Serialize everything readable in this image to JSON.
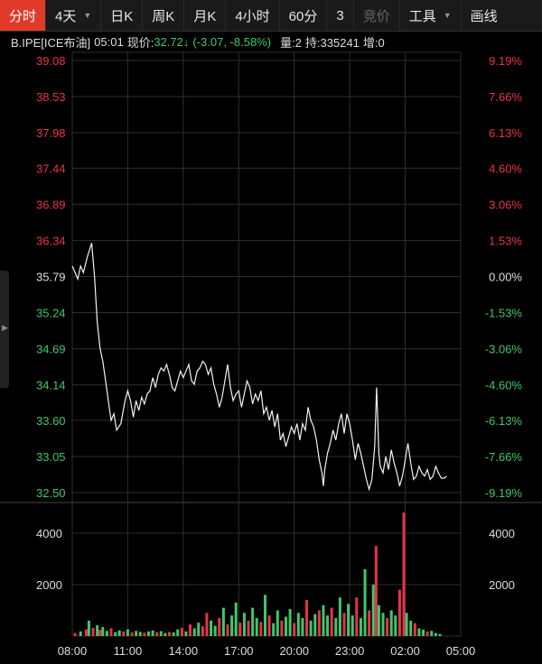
{
  "toolbar": {
    "items": [
      {
        "label": "分时",
        "active": true
      },
      {
        "label": "4天",
        "dropdown": true
      },
      {
        "label": "日K"
      },
      {
        "label": "周K"
      },
      {
        "label": "月K"
      },
      {
        "label": "4小时"
      },
      {
        "label": "60分"
      },
      {
        "label": "3"
      },
      {
        "label": "竞价",
        "disabled": true
      },
      {
        "label": "工具",
        "dropdown": true
      },
      {
        "label": "画线"
      }
    ]
  },
  "info": {
    "symbol": "B.IPE[ICE布油]",
    "time": "05:01",
    "price_label": "现价:",
    "price": "32.72",
    "change": "(-3.07, -8.58%)",
    "volume": "量:2",
    "open_interest": "持:335241",
    "increase": "增:0"
  },
  "colors": {
    "up": "#e8334a",
    "down": "#3fc66c",
    "line": "#f2f2f2",
    "grid": "#2e2e2e"
  },
  "chart_data": {
    "type": "line",
    "prev_close": 35.79,
    "y_ticks": [
      "39.08",
      "38.53",
      "37.98",
      "37.44",
      "36.89",
      "36.34",
      "35.79",
      "35.24",
      "34.69",
      "34.14",
      "33.60",
      "33.05",
      "32.50"
    ],
    "pct_ticks": [
      "9.19%",
      "7.66%",
      "6.13%",
      "4.60%",
      "3.06%",
      "1.53%",
      "0.00%",
      "-1.53%",
      "-3.06%",
      "-4.60%",
      "-6.13%",
      "-7.66%",
      "-9.19%"
    ],
    "ylim": [
      32.5,
      39.08
    ],
    "x_ticks": [
      "08:00",
      "11:00",
      "14:00",
      "17:00",
      "20:00",
      "23:00",
      "02:00",
      "05:00"
    ],
    "volume_ticks": [
      "4000",
      "2000"
    ],
    "volume_max": 4000,
    "price": [
      [
        0,
        35.95
      ],
      [
        0.1,
        35.85
      ],
      [
        0.2,
        35.75
      ],
      [
        0.3,
        35.95
      ],
      [
        0.4,
        35.85
      ],
      [
        0.55,
        36.1
      ],
      [
        0.7,
        36.3
      ],
      [
        0.8,
        35.8
      ],
      [
        0.9,
        35.1
      ],
      [
        1.0,
        34.7
      ],
      [
        1.1,
        34.5
      ],
      [
        1.2,
        34.2
      ],
      [
        1.3,
        33.9
      ],
      [
        1.4,
        33.6
      ],
      [
        1.5,
        33.7
      ],
      [
        1.6,
        33.45
      ],
      [
        1.75,
        33.55
      ],
      [
        1.9,
        33.9
      ],
      [
        2.0,
        34.05
      ],
      [
        2.1,
        33.9
      ],
      [
        2.2,
        33.65
      ],
      [
        2.3,
        33.9
      ],
      [
        2.4,
        33.75
      ],
      [
        2.5,
        33.95
      ],
      [
        2.6,
        33.85
      ],
      [
        2.7,
        34.0
      ],
      [
        2.8,
        34.05
      ],
      [
        2.9,
        34.25
      ],
      [
        3.0,
        34.1
      ],
      [
        3.1,
        34.3
      ],
      [
        3.2,
        34.4
      ],
      [
        3.3,
        34.35
      ],
      [
        3.4,
        34.45
      ],
      [
        3.5,
        34.3
      ],
      [
        3.6,
        34.1
      ],
      [
        3.7,
        34.05
      ],
      [
        3.8,
        34.2
      ],
      [
        3.9,
        34.35
      ],
      [
        4.0,
        34.25
      ],
      [
        4.1,
        34.35
      ],
      [
        4.2,
        34.45
      ],
      [
        4.3,
        34.2
      ],
      [
        4.4,
        34.15
      ],
      [
        4.5,
        34.35
      ],
      [
        4.6,
        34.4
      ],
      [
        4.7,
        34.5
      ],
      [
        4.8,
        34.45
      ],
      [
        4.9,
        34.3
      ],
      [
        5.0,
        34.4
      ],
      [
        5.1,
        34.15
      ],
      [
        5.2,
        34.0
      ],
      [
        5.3,
        33.8
      ],
      [
        5.4,
        33.95
      ],
      [
        5.5,
        34.2
      ],
      [
        5.6,
        34.45
      ],
      [
        5.7,
        34.1
      ],
      [
        5.8,
        33.9
      ],
      [
        5.9,
        34.0
      ],
      [
        6.0,
        34.05
      ],
      [
        6.1,
        33.8
      ],
      [
        6.2,
        34.0
      ],
      [
        6.3,
        34.2
      ],
      [
        6.4,
        34.1
      ],
      [
        6.5,
        33.85
      ],
      [
        6.6,
        34.0
      ],
      [
        6.7,
        33.9
      ],
      [
        6.8,
        34.05
      ],
      [
        6.9,
        33.7
      ],
      [
        7.0,
        33.8
      ],
      [
        7.1,
        33.6
      ],
      [
        7.2,
        33.75
      ],
      [
        7.3,
        33.5
      ],
      [
        7.4,
        33.7
      ],
      [
        7.5,
        33.3
      ],
      [
        7.6,
        33.4
      ],
      [
        7.7,
        33.2
      ],
      [
        7.8,
        33.35
      ],
      [
        7.9,
        33.5
      ],
      [
        8.0,
        33.4
      ],
      [
        8.1,
        33.55
      ],
      [
        8.2,
        33.3
      ],
      [
        8.3,
        33.55
      ],
      [
        8.4,
        33.45
      ],
      [
        8.5,
        33.8
      ],
      [
        8.6,
        33.6
      ],
      [
        8.7,
        33.5
      ],
      [
        8.8,
        33.3
      ],
      [
        8.9,
        33.0
      ],
      [
        9.0,
        32.8
      ],
      [
        9.05,
        32.6
      ],
      [
        9.1,
        32.85
      ],
      [
        9.2,
        33.1
      ],
      [
        9.3,
        33.25
      ],
      [
        9.4,
        33.45
      ],
      [
        9.5,
        33.3
      ],
      [
        9.6,
        33.55
      ],
      [
        9.7,
        33.7
      ],
      [
        9.8,
        33.4
      ],
      [
        9.9,
        33.7
      ],
      [
        10.0,
        33.55
      ],
      [
        10.1,
        33.3
      ],
      [
        10.2,
        33.0
      ],
      [
        10.3,
        33.25
      ],
      [
        10.4,
        33.1
      ],
      [
        10.5,
        32.9
      ],
      [
        10.6,
        32.7
      ],
      [
        10.7,
        32.55
      ],
      [
        10.8,
        32.7
      ],
      [
        10.9,
        33.2
      ],
      [
        10.97,
        34.1
      ],
      [
        11.05,
        33.1
      ],
      [
        11.1,
        32.9
      ],
      [
        11.2,
        32.8
      ],
      [
        11.3,
        33.05
      ],
      [
        11.4,
        32.85
      ],
      [
        11.5,
        33.15
      ],
      [
        11.6,
        32.95
      ],
      [
        11.7,
        32.8
      ],
      [
        11.8,
        32.6
      ],
      [
        11.9,
        32.75
      ],
      [
        12.0,
        33.0
      ],
      [
        12.1,
        33.25
      ],
      [
        12.2,
        32.95
      ],
      [
        12.3,
        32.7
      ],
      [
        12.4,
        32.75
      ],
      [
        12.5,
        32.9
      ],
      [
        12.6,
        32.8
      ],
      [
        12.7,
        32.75
      ],
      [
        12.8,
        32.85
      ],
      [
        12.9,
        32.7
      ],
      [
        13.0,
        32.75
      ],
      [
        13.1,
        32.9
      ],
      [
        13.2,
        32.8
      ],
      [
        13.3,
        32.72
      ],
      [
        13.4,
        32.72
      ],
      [
        13.5,
        32.75
      ]
    ],
    "volume": [
      [
        0.1,
        120,
        "up"
      ],
      [
        0.3,
        180,
        "down"
      ],
      [
        0.5,
        260,
        "up"
      ],
      [
        0.6,
        600,
        "down"
      ],
      [
        0.75,
        320,
        "up"
      ],
      [
        0.9,
        420,
        "down"
      ],
      [
        1.0,
        240,
        "up"
      ],
      [
        1.1,
        350,
        "down"
      ],
      [
        1.25,
        200,
        "down"
      ],
      [
        1.4,
        300,
        "up"
      ],
      [
        1.55,
        150,
        "down"
      ],
      [
        1.7,
        220,
        "down"
      ],
      [
        1.85,
        180,
        "up"
      ],
      [
        2.0,
        260,
        "down"
      ],
      [
        2.15,
        140,
        "up"
      ],
      [
        2.3,
        200,
        "down"
      ],
      [
        2.45,
        160,
        "down"
      ],
      [
        2.6,
        130,
        "up"
      ],
      [
        2.75,
        180,
        "down"
      ],
      [
        2.9,
        220,
        "down"
      ],
      [
        3.05,
        150,
        "up"
      ],
      [
        3.2,
        190,
        "down"
      ],
      [
        3.35,
        120,
        "down"
      ],
      [
        3.5,
        160,
        "up"
      ],
      [
        3.65,
        140,
        "down"
      ],
      [
        3.8,
        260,
        "down"
      ],
      [
        3.95,
        320,
        "up"
      ],
      [
        4.1,
        180,
        "down"
      ],
      [
        4.25,
        450,
        "up"
      ],
      [
        4.4,
        300,
        "down"
      ],
      [
        4.55,
        520,
        "down"
      ],
      [
        4.7,
        380,
        "up"
      ],
      [
        4.85,
        900,
        "up"
      ],
      [
        5.0,
        600,
        "down"
      ],
      [
        5.15,
        400,
        "down"
      ],
      [
        5.3,
        700,
        "up"
      ],
      [
        5.45,
        1100,
        "down"
      ],
      [
        5.6,
        450,
        "up"
      ],
      [
        5.75,
        800,
        "down"
      ],
      [
        5.9,
        1300,
        "down"
      ],
      [
        6.05,
        520,
        "up"
      ],
      [
        6.2,
        900,
        "down"
      ],
      [
        6.35,
        600,
        "up"
      ],
      [
        6.5,
        1100,
        "down"
      ],
      [
        6.65,
        700,
        "down"
      ],
      [
        6.8,
        550,
        "up"
      ],
      [
        6.95,
        1600,
        "down"
      ],
      [
        7.1,
        800,
        "up"
      ],
      [
        7.25,
        500,
        "down"
      ],
      [
        7.4,
        1000,
        "down"
      ],
      [
        7.55,
        600,
        "up"
      ],
      [
        7.7,
        750,
        "down"
      ],
      [
        7.85,
        1050,
        "down"
      ],
      [
        8.0,
        500,
        "up"
      ],
      [
        8.15,
        900,
        "down"
      ],
      [
        8.3,
        700,
        "down"
      ],
      [
        8.45,
        1400,
        "up"
      ],
      [
        8.6,
        600,
        "down"
      ],
      [
        8.75,
        850,
        "down"
      ],
      [
        8.9,
        1000,
        "up"
      ],
      [
        9.05,
        1200,
        "down"
      ],
      [
        9.2,
        800,
        "down"
      ],
      [
        9.35,
        1100,
        "up"
      ],
      [
        9.5,
        700,
        "down"
      ],
      [
        9.65,
        1500,
        "down"
      ],
      [
        9.8,
        900,
        "up"
      ],
      [
        9.95,
        1250,
        "down"
      ],
      [
        10.1,
        800,
        "down"
      ],
      [
        10.25,
        1500,
        "up"
      ],
      [
        10.4,
        700,
        "down"
      ],
      [
        10.55,
        2600,
        "down"
      ],
      [
        10.7,
        1000,
        "up"
      ],
      [
        10.85,
        2000,
        "down"
      ],
      [
        10.95,
        3500,
        "up"
      ],
      [
        11.05,
        1200,
        "down"
      ],
      [
        11.2,
        900,
        "down"
      ],
      [
        11.35,
        700,
        "up"
      ],
      [
        11.5,
        1000,
        "down"
      ],
      [
        11.65,
        800,
        "down"
      ],
      [
        11.8,
        1800,
        "up"
      ],
      [
        11.95,
        4800,
        "up"
      ],
      [
        12.05,
        900,
        "down"
      ],
      [
        12.2,
        600,
        "down"
      ],
      [
        12.35,
        500,
        "up"
      ],
      [
        12.5,
        300,
        "down"
      ],
      [
        12.65,
        250,
        "down"
      ],
      [
        12.8,
        180,
        "up"
      ],
      [
        12.95,
        200,
        "down"
      ],
      [
        13.1,
        120,
        "down"
      ],
      [
        13.25,
        80,
        "down"
      ]
    ]
  }
}
